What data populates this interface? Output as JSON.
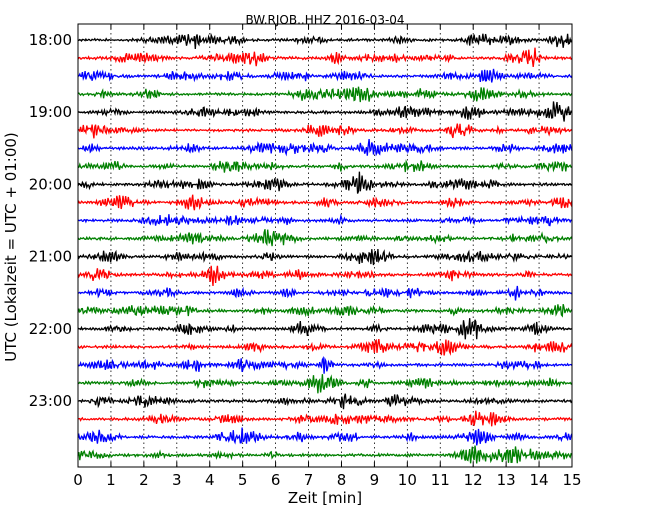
{
  "chart_data": {
    "type": "line",
    "title": "BW.RJOB..HHZ 2016-03-04",
    "xlabel": "Zeit  [min]",
    "ylabel": "UTC (Lokalzeit = UTC + 01:00)",
    "xlim": [
      0,
      15
    ],
    "x_ticks": [
      "0",
      "1",
      "2",
      "3",
      "4",
      "5",
      "6",
      "7",
      "8",
      "9",
      "10",
      "11",
      "12",
      "13",
      "14",
      "15"
    ],
    "y_tick_labels": [
      "18:00",
      "19:00",
      "20:00",
      "21:00",
      "22:00",
      "23:00"
    ],
    "rows_per_hour": 4,
    "minutes_per_row": 15,
    "row_color_cycle": [
      "#000000",
      "#ff0000",
      "#0000ff",
      "#008000"
    ],
    "grid": {
      "x_dotted": true
    },
    "series": [
      {
        "start": "18:00",
        "color": "#000000"
      },
      {
        "start": "18:15",
        "color": "#ff0000"
      },
      {
        "start": "18:30",
        "color": "#0000ff"
      },
      {
        "start": "18:45",
        "color": "#008000"
      },
      {
        "start": "19:00",
        "color": "#000000"
      },
      {
        "start": "19:15",
        "color": "#ff0000"
      },
      {
        "start": "19:30",
        "color": "#0000ff"
      },
      {
        "start": "19:45",
        "color": "#008000"
      },
      {
        "start": "20:00",
        "color": "#000000"
      },
      {
        "start": "20:15",
        "color": "#ff0000"
      },
      {
        "start": "20:30",
        "color": "#0000ff"
      },
      {
        "start": "20:45",
        "color": "#008000"
      },
      {
        "start": "21:00",
        "color": "#000000"
      },
      {
        "start": "21:15",
        "color": "#ff0000"
      },
      {
        "start": "21:30",
        "color": "#0000ff"
      },
      {
        "start": "21:45",
        "color": "#008000"
      },
      {
        "start": "22:00",
        "color": "#000000"
      },
      {
        "start": "22:15",
        "color": "#ff0000"
      },
      {
        "start": "22:30",
        "color": "#0000ff"
      },
      {
        "start": "22:45",
        "color": "#008000"
      },
      {
        "start": "23:00",
        "color": "#000000"
      },
      {
        "start": "23:15",
        "color": "#ff0000"
      },
      {
        "start": "23:30",
        "color": "#0000ff"
      },
      {
        "start": "23:45",
        "color": "#008000"
      }
    ]
  }
}
